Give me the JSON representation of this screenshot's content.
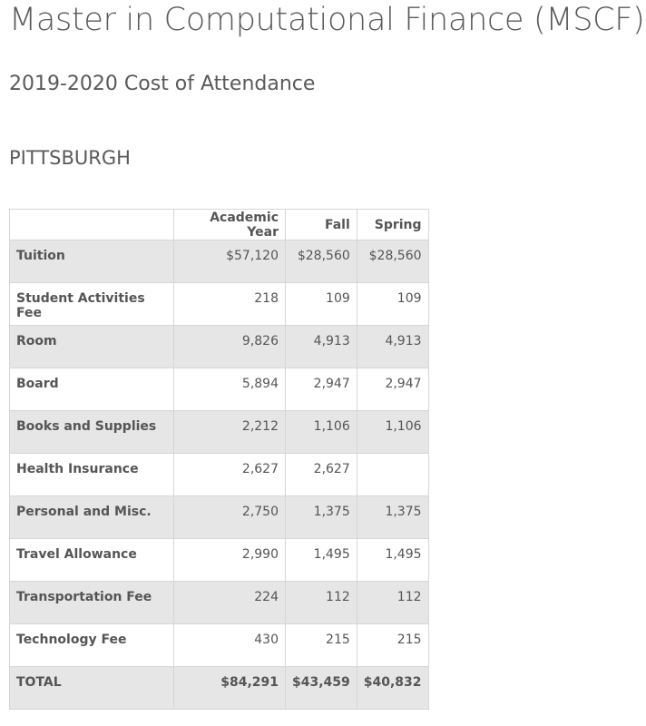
{
  "title": "Master in Computational Finance (MSCF)",
  "subtitle": "2019-2020 Cost of Attendance",
  "campus": "PITTSBURGH",
  "table": {
    "headers": [
      "",
      "Academic Year",
      "Fall",
      "Spring"
    ],
    "rows": [
      [
        "Tuition",
        "$57,120",
        "$28,560",
        "$28,560"
      ],
      [
        "Student Activities Fee",
        "218",
        "109",
        "109"
      ],
      [
        "Room",
        "9,826",
        "4,913",
        "4,913"
      ],
      [
        "Board",
        "5,894",
        "2,947",
        "2,947"
      ],
      [
        "Books and Supplies",
        "2,212",
        "1,106",
        "1,106"
      ],
      [
        "Health Insurance",
        "2,627",
        "2,627",
        ""
      ],
      [
        "Personal and Misc.",
        "2,750",
        "1,375",
        "1,375"
      ],
      [
        "Travel Allowance",
        "2,990",
        "1,495",
        "1,495"
      ],
      [
        "Transportation Fee",
        "224",
        "112",
        "112"
      ],
      [
        "Technology Fee",
        "430",
        "215",
        "215"
      ],
      [
        "TOTAL",
        "$84,291",
        "$43,459",
        "$40,832"
      ]
    ]
  }
}
